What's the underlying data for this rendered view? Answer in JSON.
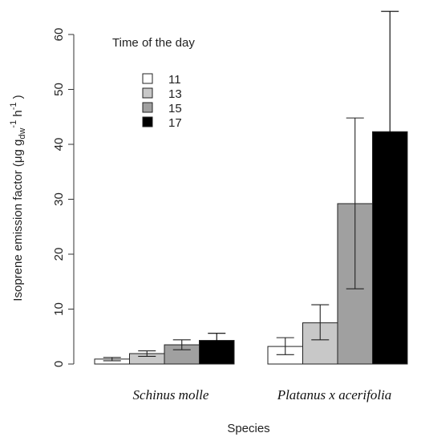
{
  "chart_data": {
    "type": "bar",
    "title": "",
    "xlabel": "Species",
    "ylabel": "Isoprene emission factor (μg g",
    "ylabel_sub": "dw",
    "ylabel_unit_mid": "-1",
    "ylabel_h": " h",
    "ylabel_sup2": "-1",
    "ylabel_close": " )",
    "ylim": [
      0,
      60
    ],
    "yticks": [
      "0",
      "10",
      "20",
      "30",
      "40",
      "50",
      "60"
    ],
    "categories": [
      "Schinus molle",
      "Platanus x acerifolia"
    ],
    "legend": {
      "title": "Time of the day",
      "placement": "top-left"
    },
    "series": [
      {
        "name": "11",
        "color": "#ffffff",
        "values": [
          0.9,
          3.2
        ],
        "err_low": [
          0.6,
          1.7
        ],
        "err_high": [
          1.2,
          4.8
        ]
      },
      {
        "name": "13",
        "color": "#c8c8c8",
        "values": [
          1.9,
          7.5
        ],
        "err_low": [
          1.4,
          4.4
        ],
        "err_high": [
          2.4,
          10.8
        ]
      },
      {
        "name": "15",
        "color": "#a0a0a0",
        "values": [
          3.5,
          29.2
        ],
        "err_low": [
          2.6,
          13.7
        ],
        "err_high": [
          4.4,
          44.8
        ]
      },
      {
        "name": "17",
        "color": "#000000",
        "values": [
          4.3,
          42.3
        ],
        "err_low": [
          3.0,
          20.0
        ],
        "err_high": [
          5.6,
          64.2
        ]
      }
    ]
  }
}
